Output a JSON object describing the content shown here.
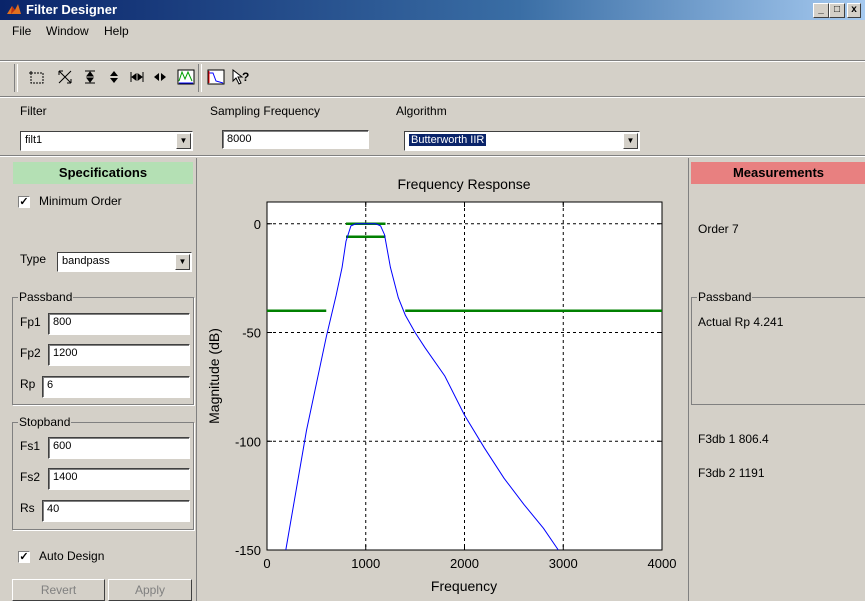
{
  "window": {
    "title": "Filter Designer"
  },
  "menu": [
    "File",
    "Window",
    "Help"
  ],
  "toolbar": {
    "icons": [
      "select-icon",
      "zoom-x-y-icon",
      "zoom-y-icon",
      "zoom-y-in-icon",
      "zoom-x-icon",
      "zoom-x-out-icon",
      "frequency-response-icon",
      "filter-viewer-icon",
      "whats-this-icon"
    ]
  },
  "top": {
    "filter_label": "Filter",
    "filter_value": "filt1",
    "sampling_label": "Sampling Frequency",
    "sampling_value": "8000",
    "algorithm_label": "Algorithm",
    "algorithm_value": "Butterworth IIR"
  },
  "specs": {
    "header": "Specifications",
    "min_order_label": "Minimum Order",
    "min_order_checked": true,
    "type_label": "Type",
    "type_value": "bandpass",
    "passband_title": "Passband",
    "fp1_label": "Fp1",
    "fp1_value": "800",
    "fp2_label": "Fp2",
    "fp2_value": "1200",
    "rp_label": "Rp",
    "rp_value": "6",
    "stopband_title": "Stopband",
    "fs1_label": "Fs1",
    "fs1_value": "600",
    "fs2_label": "Fs2",
    "fs2_value": "1400",
    "rs_label": "Rs",
    "rs_value": "40",
    "auto_design_label": "Auto Design",
    "auto_design_checked": true,
    "revert_label": "Revert",
    "apply_label": "Apply"
  },
  "measurements": {
    "header": "Measurements",
    "order_text": "Order 7",
    "passband_title": "Passband",
    "actual_rp_text": "Actual Rp  4.241",
    "f3db1_text": "F3db 1  806.4",
    "f3db2_text": "F3db 2  1191"
  },
  "colors": {
    "specs_header": "#b4e0b4",
    "measurements_header": "#e88080",
    "response_line": "#0000ff",
    "spec_line": "#008000",
    "algorithm_highlight": "#0a246a"
  },
  "chart_data": {
    "type": "line",
    "title": "Frequency Response",
    "xlabel": "Frequency",
    "ylabel": "Magnitude (dB)",
    "xlim": [
      0,
      4000
    ],
    "ylim": [
      -150,
      10
    ],
    "x_ticks": [
      0,
      1000,
      2000,
      3000,
      4000
    ],
    "y_ticks": [
      0,
      -50,
      -100,
      -150
    ],
    "x_tick_labels": [
      "0",
      "1000",
      "2000",
      "3000",
      "4000"
    ],
    "y_tick_labels": [
      "0",
      "-50",
      "-100",
      "-150"
    ],
    "grid": true,
    "series": [
      {
        "color": "#0000ff",
        "x": [
          190,
          400,
          600,
          700,
          760,
          800,
          850,
          900,
          1000,
          1100,
          1150,
          1190,
          1250,
          1330,
          1400,
          1500,
          1600,
          1800,
          2000,
          2200,
          2400,
          2600,
          2800,
          2950
        ],
        "y": [
          -150,
          -95,
          -52,
          -33,
          -20,
          -8,
          -1,
          0,
          0,
          0,
          -1,
          -5,
          -20,
          -34,
          -42,
          -50,
          -57,
          -70,
          -88,
          -103,
          -117,
          -129,
          -140,
          -150
        ]
      }
    ],
    "spec_segments": [
      {
        "x": [
          0,
          600
        ],
        "y": [
          -40,
          -40
        ]
      },
      {
        "x": [
          1400,
          4000
        ],
        "y": [
          -40,
          -40
        ]
      },
      {
        "x": [
          800,
          1200
        ],
        "y": [
          0,
          0
        ]
      },
      {
        "x": [
          800,
          1200
        ],
        "y": [
          -6,
          -6
        ]
      }
    ]
  }
}
